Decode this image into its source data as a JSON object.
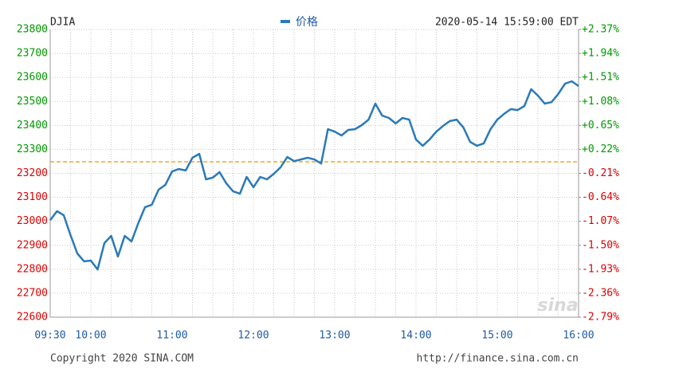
{
  "chart_data": {
    "type": "line",
    "title": "DJIA",
    "timestamp": "2020-05-14 15:59:00 EDT",
    "copyright": "Copyright 2020 SINA.COM",
    "url": "http://finance.sina.com.cn",
    "watermark": "sina",
    "x": [
      "09:30",
      "09:35",
      "09:40",
      "09:45",
      "09:50",
      "09:55",
      "10:00",
      "10:05",
      "10:10",
      "10:15",
      "10:20",
      "10:25",
      "10:30",
      "10:35",
      "10:40",
      "10:45",
      "10:50",
      "10:55",
      "11:00",
      "11:05",
      "11:10",
      "11:15",
      "11:20",
      "11:25",
      "11:30",
      "11:35",
      "11:40",
      "11:45",
      "11:50",
      "11:55",
      "12:00",
      "12:05",
      "12:10",
      "12:15",
      "12:20",
      "12:25",
      "12:30",
      "12:35",
      "12:40",
      "12:45",
      "12:50",
      "12:55",
      "13:00",
      "13:05",
      "13:10",
      "13:15",
      "13:20",
      "13:25",
      "13:30",
      "13:35",
      "13:40",
      "13:45",
      "13:50",
      "13:55",
      "14:00",
      "14:05",
      "14:10",
      "14:15",
      "14:20",
      "14:25",
      "14:30",
      "14:35",
      "14:40",
      "14:45",
      "14:50",
      "14:55",
      "15:00",
      "15:05",
      "15:10",
      "15:15",
      "15:20",
      "15:25",
      "15:30",
      "15:35",
      "15:40",
      "15:45",
      "15:50",
      "15:55",
      "16:00"
    ],
    "series": [
      {
        "name": "价格",
        "color": "#2a7ab8",
        "values": [
          23005,
          23042,
          23025,
          22942,
          22866,
          22833,
          22836,
          22799,
          22909,
          22939,
          22853,
          22939,
          22916,
          22992,
          23059,
          23069,
          23132,
          23152,
          23208,
          23218,
          23212,
          23265,
          23281,
          23175,
          23182,
          23205,
          23158,
          23125,
          23115,
          23185,
          23142,
          23185,
          23175,
          23198,
          23225,
          23268,
          23251,
          23258,
          23265,
          23258,
          23241,
          23384,
          23374,
          23358,
          23381,
          23384,
          23401,
          23424,
          23491,
          23441,
          23431,
          23408,
          23431,
          23424,
          23341,
          23315,
          23341,
          23374,
          23398,
          23418,
          23424,
          23391,
          23331,
          23315,
          23325,
          23384,
          23424,
          23448,
          23468,
          23464,
          23481,
          23551,
          23524,
          23491,
          23497,
          23531,
          23574,
          23584,
          23564
        ]
      }
    ],
    "prev_close": 23248,
    "prev_close_color": "#f5a623",
    "up_color": "#009900",
    "down_color": "#dd0000",
    "xlim": [
      "09:30",
      "16:00"
    ],
    "xticks": [
      "09:30",
      "10:00",
      "11:00",
      "12:00",
      "13:00",
      "14:00",
      "15:00",
      "16:00"
    ],
    "ylim": [
      22600,
      23800
    ],
    "yticks": [
      22600,
      22700,
      22800,
      22900,
      23000,
      23100,
      23200,
      23300,
      23400,
      23500,
      23600,
      23700,
      23800
    ],
    "y2lim": [
      -2.79,
      2.37
    ],
    "y2ticks": [
      {
        "value": -2.79,
        "label": "-2.79%"
      },
      {
        "value": -2.36,
        "label": "-2.36%"
      },
      {
        "value": -1.93,
        "label": "-1.93%"
      },
      {
        "value": -1.5,
        "label": "-1.50%"
      },
      {
        "value": -1.07,
        "label": "-1.07%"
      },
      {
        "value": -0.64,
        "label": "-0.64%"
      },
      {
        "value": -0.21,
        "label": "-0.21%"
      },
      {
        "value": 0.22,
        "label": "+0.22%"
      },
      {
        "value": 0.65,
        "label": "+0.65%"
      },
      {
        "value": 1.08,
        "label": "+1.08%"
      },
      {
        "value": 1.51,
        "label": "+1.51%"
      },
      {
        "value": 1.94,
        "label": "+1.94%"
      },
      {
        "value": 2.37,
        "label": "+2.37%"
      }
    ],
    "grid": true
  }
}
